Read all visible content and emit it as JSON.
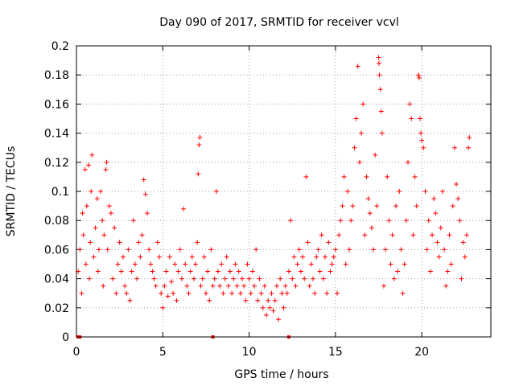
{
  "chart_data": {
    "type": "scatter",
    "title": "Day 090 of 2017, SRMTID for receiver vcvl",
    "xlabel": "GPS time / hours",
    "ylabel": "SRMTID / TECUs",
    "xlim": [
      0,
      24
    ],
    "ylim": [
      0,
      0.2
    ],
    "xticks": [
      0,
      5,
      10,
      15,
      20
    ],
    "xtick_labels": [
      "0",
      "5",
      "10",
      "15",
      "20"
    ],
    "yticks": [
      0,
      0.02,
      0.04,
      0.06,
      0.08,
      0.1,
      0.12,
      0.14,
      0.16,
      0.18,
      0.2
    ],
    "ytick_labels": [
      "0",
      "0.02",
      "0.04",
      "0.06",
      "0.08",
      "0.1",
      "0.12",
      "0.14",
      "0.16",
      "0.18",
      "0.2"
    ],
    "grid": true,
    "marker": "+",
    "series": [
      {
        "name": "SRMTID",
        "color": "#ff0000",
        "points": [
          [
            0.1,
            0.045
          ],
          [
            0.2,
            0.06
          ],
          [
            0.3,
            0.03
          ],
          [
            0.35,
            0.085
          ],
          [
            0.4,
            0.07
          ],
          [
            0.5,
            0.115
          ],
          [
            0.55,
            0.05
          ],
          [
            0.6,
            0.09
          ],
          [
            0.7,
            0.118
          ],
          [
            0.75,
            0.04
          ],
          [
            0.8,
            0.065
          ],
          [
            0.85,
            0.1
          ],
          [
            0.9,
            0.125
          ],
          [
            1.0,
            0.055
          ],
          [
            1.1,
            0.075
          ],
          [
            1.2,
            0.095
          ],
          [
            1.25,
            0.045
          ],
          [
            1.3,
            0.06
          ],
          [
            1.4,
            0.1
          ],
          [
            1.5,
            0.08
          ],
          [
            1.55,
            0.035
          ],
          [
            1.6,
            0.07
          ],
          [
            1.7,
            0.115
          ],
          [
            1.75,
            0.12
          ],
          [
            1.8,
            0.06
          ],
          [
            1.9,
            0.09
          ],
          [
            2.0,
            0.085
          ],
          [
            2.1,
            0.04
          ],
          [
            2.2,
            0.075
          ],
          [
            2.3,
            0.03
          ],
          [
            2.4,
            0.05
          ],
          [
            2.5,
            0.065
          ],
          [
            2.6,
            0.045
          ],
          [
            2.7,
            0.055
          ],
          [
            2.8,
            0.035
          ],
          [
            2.9,
            0.03
          ],
          [
            3.0,
            0.06
          ],
          [
            3.1,
            0.025
          ],
          [
            3.2,
            0.045
          ],
          [
            3.3,
            0.08
          ],
          [
            3.4,
            0.05
          ],
          [
            3.5,
            0.04
          ],
          [
            3.6,
            0.065
          ],
          [
            3.7,
            0.055
          ],
          [
            3.8,
            0.07
          ],
          [
            3.9,
            0.108
          ],
          [
            4.0,
            0.098
          ],
          [
            4.1,
            0.085
          ],
          [
            4.2,
            0.06
          ],
          [
            4.3,
            0.05
          ],
          [
            4.4,
            0.045
          ],
          [
            4.5,
            0.04
          ],
          [
            4.6,
            0.035
          ],
          [
            4.7,
            0.065
          ],
          [
            4.8,
            0.055
          ],
          [
            4.9,
            0.03
          ],
          [
            5.0,
            0.02
          ],
          [
            5.1,
            0.035
          ],
          [
            5.2,
            0.045
          ],
          [
            5.3,
            0.028
          ],
          [
            5.4,
            0.055
          ],
          [
            5.5,
            0.038
          ],
          [
            5.6,
            0.03
          ],
          [
            5.7,
            0.05
          ],
          [
            5.8,
            0.025
          ],
          [
            5.9,
            0.045
          ],
          [
            6.0,
            0.06
          ],
          [
            6.1,
            0.04
          ],
          [
            6.2,
            0.088
          ],
          [
            6.3,
            0.05
          ],
          [
            6.4,
            0.035
          ],
          [
            6.5,
            0.03
          ],
          [
            6.6,
            0.045
          ],
          [
            6.7,
            0.055
          ],
          [
            6.8,
            0.04
          ],
          [
            6.9,
            0.05
          ],
          [
            7.0,
            0.065
          ],
          [
            7.05,
            0.112
          ],
          [
            7.1,
            0.132
          ],
          [
            7.15,
            0.137
          ],
          [
            7.2,
            0.035
          ],
          [
            7.3,
            0.04
          ],
          [
            7.4,
            0.055
          ],
          [
            7.5,
            0.03
          ],
          [
            7.6,
            0.045
          ],
          [
            7.7,
            0.025
          ],
          [
            7.8,
            0.06
          ],
          [
            7.9,
            0.035
          ],
          [
            8.0,
            0.04
          ],
          [
            8.1,
            0.1
          ],
          [
            8.2,
            0.045
          ],
          [
            8.3,
            0.035
          ],
          [
            8.4,
            0.05
          ],
          [
            8.5,
            0.03
          ],
          [
            8.6,
            0.04
          ],
          [
            8.7,
            0.055
          ],
          [
            8.8,
            0.035
          ],
          [
            8.9,
            0.045
          ],
          [
            9.0,
            0.03
          ],
          [
            9.1,
            0.04
          ],
          [
            9.2,
            0.05
          ],
          [
            9.3,
            0.035
          ],
          [
            9.4,
            0.045
          ],
          [
            9.5,
            0.03
          ],
          [
            9.6,
            0.04
          ],
          [
            9.7,
            0.035
          ],
          [
            9.8,
            0.025
          ],
          [
            9.9,
            0.05
          ],
          [
            10.0,
            0.04
          ],
          [
            10.1,
            0.03
          ],
          [
            10.2,
            0.045
          ],
          [
            10.3,
            0.035
          ],
          [
            10.4,
            0.06
          ],
          [
            10.5,
            0.025
          ],
          [
            10.6,
            0.04
          ],
          [
            10.7,
            0.03
          ],
          [
            10.8,
            0.02
          ],
          [
            10.9,
            0.035
          ],
          [
            11.0,
            0.015
          ],
          [
            11.1,
            0.025
          ],
          [
            11.2,
            0.02
          ],
          [
            11.3,
            0.03
          ],
          [
            11.4,
            0.018
          ],
          [
            11.5,
            0.025
          ],
          [
            11.6,
            0.035
          ],
          [
            11.7,
            0.012
          ],
          [
            11.8,
            0.04
          ],
          [
            11.9,
            0.03
          ],
          [
            12.0,
            0.02
          ],
          [
            12.1,
            0.035
          ],
          [
            12.2,
            0.03
          ],
          [
            12.3,
            0.045
          ],
          [
            12.4,
            0.08
          ],
          [
            12.5,
            0.04
          ],
          [
            12.6,
            0.055
          ],
          [
            12.7,
            0.035
          ],
          [
            12.8,
            0.05
          ],
          [
            12.9,
            0.06
          ],
          [
            13.0,
            0.045
          ],
          [
            13.1,
            0.055
          ],
          [
            13.2,
            0.04
          ],
          [
            13.3,
            0.11
          ],
          [
            13.4,
            0.065
          ],
          [
            13.5,
            0.035
          ],
          [
            13.6,
            0.05
          ],
          [
            13.7,
            0.04
          ],
          [
            13.8,
            0.03
          ],
          [
            13.9,
            0.055
          ],
          [
            14.0,
            0.06
          ],
          [
            14.1,
            0.045
          ],
          [
            14.2,
            0.07
          ],
          [
            14.3,
            0.04
          ],
          [
            14.4,
            0.055
          ],
          [
            14.5,
            0.03
          ],
          [
            14.6,
            0.065
          ],
          [
            14.7,
            0.045
          ],
          [
            14.8,
            0.05
          ],
          [
            14.9,
            0.055
          ],
          [
            15.0,
            0.06
          ],
          [
            15.1,
            0.03
          ],
          [
            15.2,
            0.07
          ],
          [
            15.3,
            0.08
          ],
          [
            15.4,
            0.09
          ],
          [
            15.5,
            0.11
          ],
          [
            15.6,
            0.05
          ],
          [
            15.7,
            0.1
          ],
          [
            15.8,
            0.06
          ],
          [
            15.9,
            0.08
          ],
          [
            16.0,
            0.09
          ],
          [
            16.1,
            0.13
          ],
          [
            16.2,
            0.15
          ],
          [
            16.3,
            0.186
          ],
          [
            16.4,
            0.12
          ],
          [
            16.5,
            0.14
          ],
          [
            16.6,
            0.16
          ],
          [
            16.7,
            0.07
          ],
          [
            16.8,
            0.11
          ],
          [
            16.9,
            0.095
          ],
          [
            17.0,
            0.085
          ],
          [
            17.1,
            0.075
          ],
          [
            17.2,
            0.06
          ],
          [
            17.3,
            0.125
          ],
          [
            17.4,
            0.09
          ],
          [
            17.5,
            0.192
          ],
          [
            17.52,
            0.188
          ],
          [
            17.55,
            0.18
          ],
          [
            17.6,
            0.17
          ],
          [
            17.65,
            0.155
          ],
          [
            17.7,
            0.14
          ],
          [
            17.8,
            0.035
          ],
          [
            17.9,
            0.06
          ],
          [
            18.0,
            0.11
          ],
          [
            18.1,
            0.08
          ],
          [
            18.2,
            0.05
          ],
          [
            18.3,
            0.07
          ],
          [
            18.4,
            0.04
          ],
          [
            18.5,
            0.09
          ],
          [
            18.6,
            0.045
          ],
          [
            18.7,
            0.1
          ],
          [
            18.8,
            0.06
          ],
          [
            18.9,
            0.03
          ],
          [
            19.0,
            0.05
          ],
          [
            19.1,
            0.08
          ],
          [
            19.2,
            0.12
          ],
          [
            19.3,
            0.16
          ],
          [
            19.4,
            0.15
          ],
          [
            19.5,
            0.07
          ],
          [
            19.6,
            0.11
          ],
          [
            19.7,
            0.09
          ],
          [
            19.8,
            0.18
          ],
          [
            19.85,
            0.178
          ],
          [
            19.9,
            0.15
          ],
          [
            19.95,
            0.14
          ],
          [
            20.0,
            0.135
          ],
          [
            20.1,
            0.13
          ],
          [
            20.2,
            0.1
          ],
          [
            20.3,
            0.06
          ],
          [
            20.4,
            0.08
          ],
          [
            20.5,
            0.045
          ],
          [
            20.6,
            0.07
          ],
          [
            20.7,
            0.095
          ],
          [
            20.8,
            0.085
          ],
          [
            20.9,
            0.065
          ],
          [
            21.0,
            0.055
          ],
          [
            21.1,
            0.075
          ],
          [
            21.2,
            0.1
          ],
          [
            21.3,
            0.06
          ],
          [
            21.4,
            0.035
          ],
          [
            21.5,
            0.045
          ],
          [
            21.6,
            0.07
          ],
          [
            21.7,
            0.05
          ],
          [
            21.8,
            0.09
          ],
          [
            21.9,
            0.13
          ],
          [
            22.0,
            0.105
          ],
          [
            22.1,
            0.095
          ],
          [
            22.2,
            0.08
          ],
          [
            22.3,
            0.04
          ],
          [
            22.4,
            0.065
          ],
          [
            22.5,
            0.055
          ],
          [
            22.6,
            0.07
          ],
          [
            22.7,
            0.13
          ],
          [
            22.75,
            0.137
          ]
        ]
      }
    ],
    "baseline_markers": [
      0.1,
      0.2,
      7.9,
      12.3
    ],
    "baseline_y": 0
  }
}
